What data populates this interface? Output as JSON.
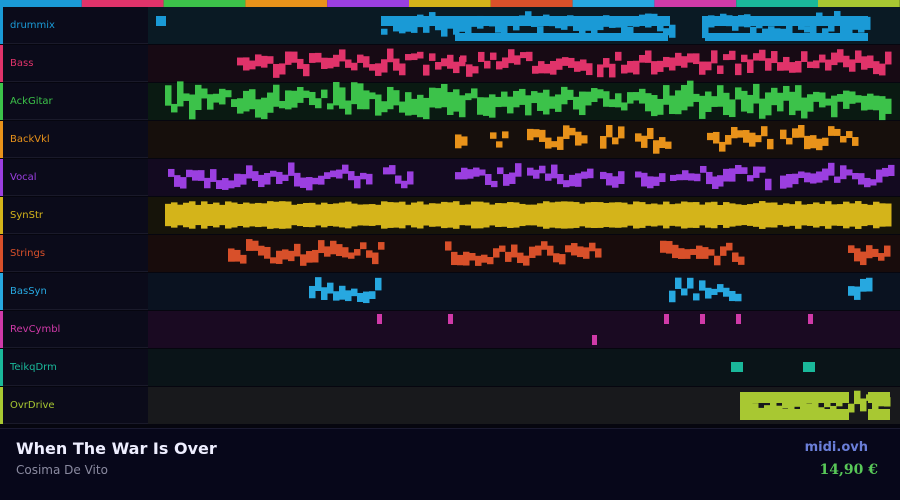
{
  "tracks": [
    "drummix",
    "Bass",
    "AckGitar",
    "BackVkl",
    "Vocal",
    "SynStr",
    "Strings",
    "BasSyn",
    "RevCymbl",
    "TeikqDrm",
    "OvrDrive"
  ],
  "footer": {
    "title": "When The War Is Over",
    "artist": "Cosima De Vito",
    "site": "midi.ovh",
    "price": "14,90 €"
  }
}
